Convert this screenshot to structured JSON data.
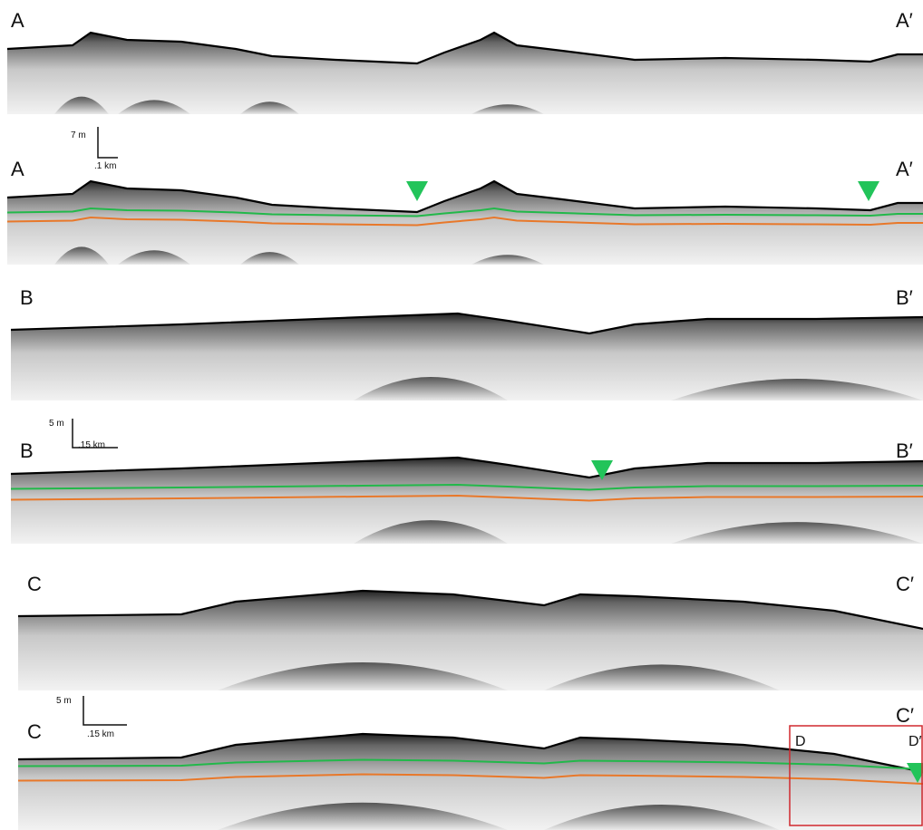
{
  "panels": [
    {
      "left_label": "A",
      "right_label": "A′"
    },
    {
      "left_label": "A",
      "right_label": "A′",
      "scale_vertical": "7 m",
      "scale_horizontal": ".1 km"
    },
    {
      "left_label": "B",
      "right_label": "B′"
    },
    {
      "left_label": "B",
      "right_label": "B′",
      "scale_vertical": "5 m",
      "scale_horizontal": ".15 km"
    },
    {
      "left_label": "C",
      "right_label": "C′"
    },
    {
      "left_label": "C",
      "right_label": "C′",
      "scale_vertical": "5 m",
      "scale_horizontal": ".15 km",
      "inset_left_label": "D",
      "inset_right_label": "D′"
    }
  ]
}
